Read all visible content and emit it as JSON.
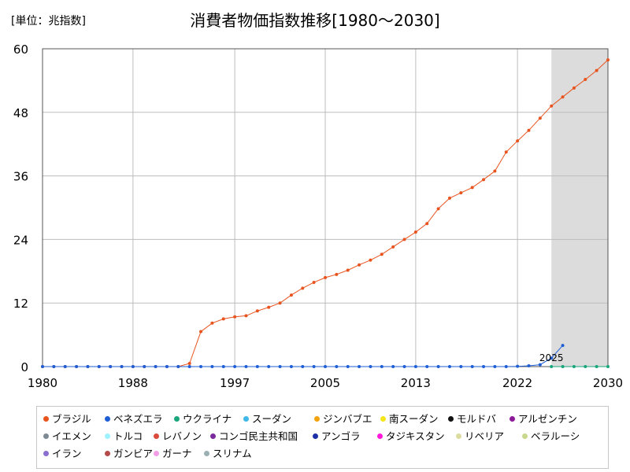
{
  "unit_label": "[単位：兆指数]",
  "title": "消費者物価指数推移[1980～2030]",
  "chart_data": {
    "type": "line",
    "title": "消費者物価指数推移[1980～2030]",
    "unit": "[単位：兆指数]",
    "xlabel": "",
    "ylabel": "",
    "xlim": [
      1980,
      2030
    ],
    "ylim": [
      0,
      60
    ],
    "x_ticks": [
      1980,
      1988,
      1997,
      2005,
      2013,
      2022,
      2030
    ],
    "y_ticks": [
      0,
      12,
      24,
      36,
      48,
      60
    ],
    "grid": true,
    "forecast_shade_from": 2025,
    "annotation": {
      "text": "2025",
      "x": 2025,
      "y": 0.6
    },
    "series": [
      {
        "name": "ブラジル",
        "color": "#e8531e",
        "x": [
          1980,
          1981,
          1982,
          1983,
          1984,
          1985,
          1986,
          1987,
          1988,
          1989,
          1990,
          1991,
          1992,
          1993,
          1994,
          1995,
          1996,
          1997,
          1998,
          1999,
          2000,
          2001,
          2002,
          2003,
          2004,
          2005,
          2006,
          2007,
          2008,
          2009,
          2010,
          2011,
          2012,
          2013,
          2014,
          2015,
          2016,
          2017,
          2018,
          2019,
          2020,
          2021,
          2022,
          2023,
          2024,
          2025,
          2026,
          2027,
          2028,
          2029,
          2030
        ],
        "values": [
          0,
          0,
          0,
          0,
          0,
          0,
          0,
          0,
          0,
          0,
          0,
          0,
          0,
          0.6,
          6.6,
          8.2,
          9.0,
          9.4,
          9.6,
          10.5,
          11.2,
          12.0,
          13.5,
          14.8,
          15.9,
          16.8,
          17.4,
          18.2,
          19.2,
          20.1,
          21.2,
          22.6,
          24.0,
          25.4,
          27.0,
          29.8,
          31.8,
          32.8,
          33.8,
          35.3,
          36.9,
          40.5,
          42.6,
          44.6,
          46.9,
          49.2,
          50.9,
          52.6,
          54.2,
          55.9,
          57.9
        ]
      },
      {
        "name": "ベネズエラ",
        "color": "#1f5fd6",
        "x": [
          1980,
          1981,
          1982,
          1983,
          1984,
          1985,
          1986,
          1987,
          1988,
          1989,
          1990,
          1991,
          1992,
          1993,
          1994,
          1995,
          1996,
          1997,
          1998,
          1999,
          2000,
          2001,
          2002,
          2003,
          2004,
          2005,
          2006,
          2007,
          2008,
          2009,
          2010,
          2011,
          2012,
          2013,
          2014,
          2015,
          2016,
          2017,
          2018,
          2019,
          2020,
          2021,
          2022,
          2023,
          2024,
          2025,
          2026
        ],
        "values": [
          0,
          0,
          0,
          0,
          0,
          0,
          0,
          0,
          0,
          0,
          0,
          0,
          0,
          0,
          0,
          0,
          0,
          0,
          0,
          0,
          0,
          0,
          0,
          0,
          0,
          0,
          0,
          0,
          0,
          0,
          0,
          0,
          0,
          0,
          0,
          0,
          0,
          0,
          0,
          0,
          0,
          0,
          0.05,
          0.15,
          0.35,
          1.6,
          4.0
        ]
      },
      {
        "name": "ウクライナ",
        "color": "#1aa67a",
        "x": [
          2025,
          2026,
          2027,
          2028,
          2029,
          2030
        ],
        "values": [
          0,
          0,
          0,
          0,
          0,
          0
        ]
      },
      {
        "name": "スーダン",
        "color": "#3fb8e8",
        "x": [],
        "values": []
      },
      {
        "name": "ジンバブエ",
        "color": "#f2a20c",
        "x": [],
        "values": []
      },
      {
        "name": "南スーダン",
        "color": "#f5e61c",
        "x": [],
        "values": []
      },
      {
        "name": "モルドバ",
        "color": "#111111",
        "x": [],
        "values": []
      },
      {
        "name": "アルゼンチン",
        "color": "#8c1a99",
        "x": [],
        "values": []
      },
      {
        "name": "イエメン",
        "color": "#7d8a94",
        "x": [],
        "values": []
      },
      {
        "name": "トルコ",
        "color": "#9ef2ff",
        "x": [],
        "values": []
      },
      {
        "name": "レバノン",
        "color": "#d94a3a",
        "x": [],
        "values": []
      },
      {
        "name": "コンゴ民主共和国",
        "color": "#7a2a9c",
        "x": [],
        "values": []
      },
      {
        "name": "アンゴラ",
        "color": "#1c2fa8",
        "x": [],
        "values": []
      },
      {
        "name": "タジキスタン",
        "color": "#ff19d9",
        "x": [],
        "values": []
      },
      {
        "name": "リベリア",
        "color": "#dcdca0",
        "x": [],
        "values": []
      },
      {
        "name": "ベラルーシ",
        "color": "#c8d88a",
        "x": [],
        "values": []
      },
      {
        "name": "イラン",
        "color": "#8a6fd0",
        "x": [],
        "values": []
      },
      {
        "name": "ガンビア",
        "color": "#b54a4a",
        "x": [],
        "values": []
      },
      {
        "name": "ガーナ",
        "color": "#f29ee6",
        "x": [],
        "values": []
      },
      {
        "name": "スリナム",
        "color": "#9bb0b3",
        "x": [],
        "values": []
      }
    ]
  }
}
